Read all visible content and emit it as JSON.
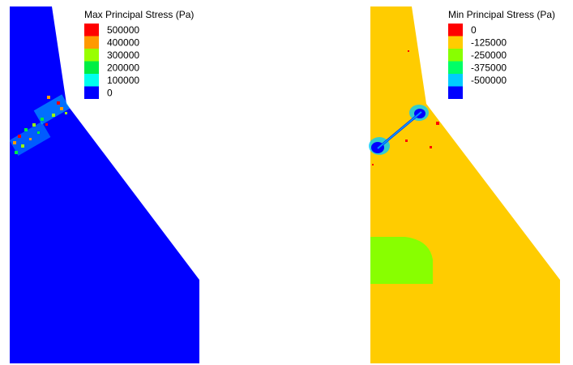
{
  "panels": [
    {
      "id": "max",
      "legend_title": "Max Principal Stress (Pa)",
      "legend": [
        {
          "label": "500000",
          "color": "#ff0000"
        },
        {
          "label": "400000",
          "color": "#ff9900"
        },
        {
          "label": "300000",
          "color": "#99ff00"
        },
        {
          "label": "200000",
          "color": "#00ee44"
        },
        {
          "label": "100000",
          "color": "#00ffee"
        },
        {
          "label": "0",
          "color": "#0000ff"
        }
      ],
      "fill_color": "#0000ff"
    },
    {
      "id": "min",
      "legend_title": "Min Principal Stress (Pa)",
      "legend": [
        {
          "label": "0",
          "color": "#ff0000"
        },
        {
          "label": "-125000",
          "color": "#ffcc00"
        },
        {
          "label": "-250000",
          "color": "#88ff00"
        },
        {
          "label": "-375000",
          "color": "#00ff66"
        },
        {
          "label": "-500000",
          "color": "#00ccff"
        },
        {
          "label": "",
          "color": "#0000ff"
        }
      ],
      "fill_color": "#ffcc00"
    }
  ]
}
